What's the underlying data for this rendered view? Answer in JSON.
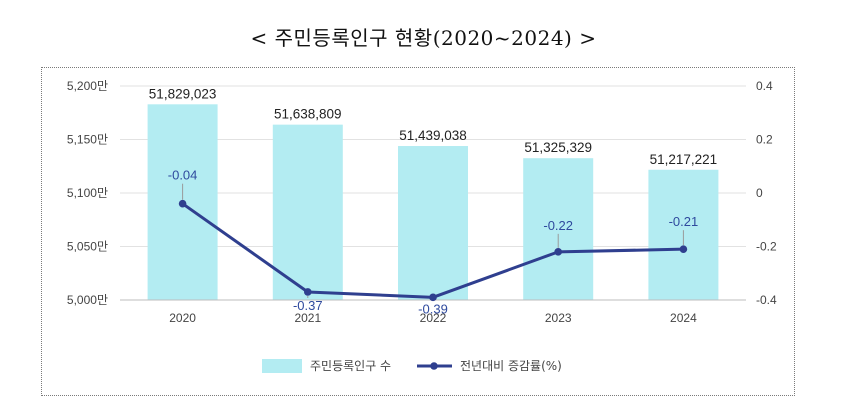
{
  "title": "< 주민등록인구  현황(2020~2024) >",
  "chart_data": {
    "type": "bar",
    "categories": [
      "2020",
      "2021",
      "2022",
      "2023",
      "2024"
    ],
    "series": [
      {
        "name": "주민등록인구 수",
        "type": "bar",
        "axis": "left",
        "values": [
          51829023,
          51638809,
          51439038,
          51325329,
          51217221
        ],
        "value_labels": [
          "51,829,023",
          "51,638,809",
          "51,439,038",
          "51,325,329",
          "51,217,221"
        ],
        "color": "#b3ecf2"
      },
      {
        "name": "전년대비 증감률(%)",
        "type": "line",
        "axis": "right",
        "values": [
          -0.04,
          -0.37,
          -0.39,
          -0.22,
          -0.21
        ],
        "value_labels": [
          "-0.04",
          "-0.37",
          "-0.39",
          "-0.22",
          "-0.21"
        ],
        "color": "#2f3f8f"
      }
    ],
    "y_left": {
      "min": 50000000,
      "max": 52000000,
      "ticks": [
        50000000,
        50500000,
        51000000,
        51500000,
        52000000
      ],
      "tick_labels": [
        "5,000만",
        "5,050만",
        "5,100만",
        "5,150만",
        "5,200만"
      ]
    },
    "y_right": {
      "min": -0.4,
      "max": 0.4,
      "ticks": [
        -0.4,
        -0.2,
        0,
        0.2,
        0.4
      ],
      "tick_labels": [
        "-0.4",
        "-0.2",
        "0",
        "0.2",
        "0.4"
      ]
    },
    "grid": true,
    "legend": "bottom-center"
  }
}
